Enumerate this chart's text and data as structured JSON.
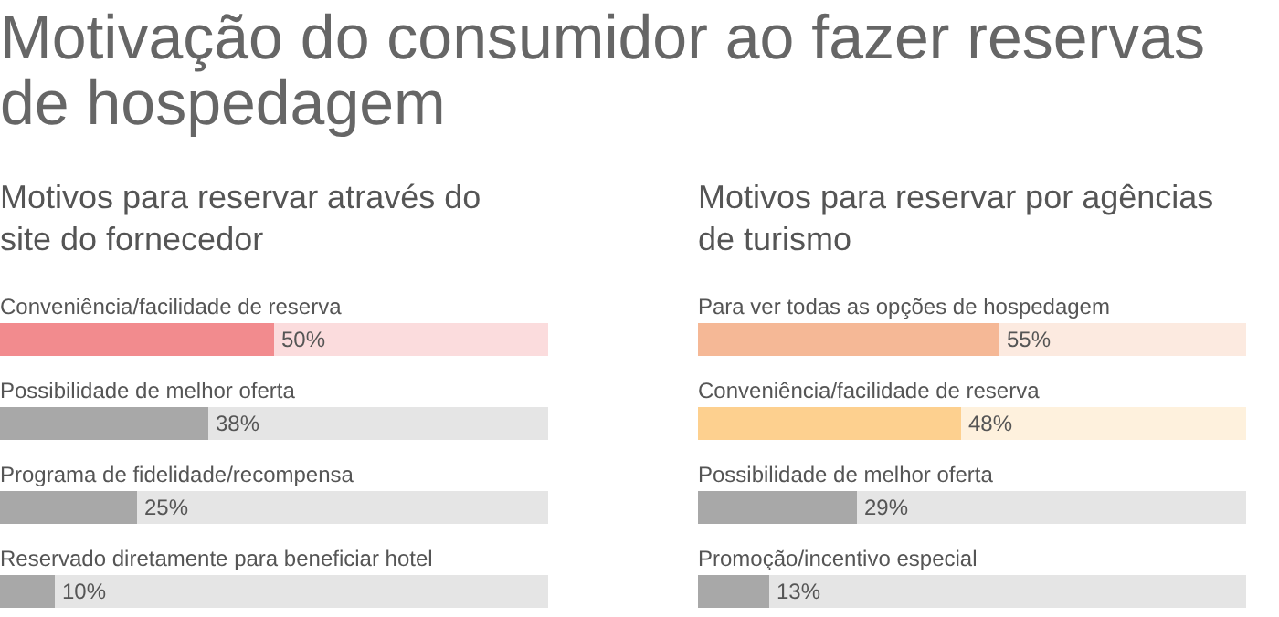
{
  "chart_data": [
    {
      "type": "bar",
      "orientation": "horizontal",
      "title": "Motivação do consumidor ao fazer reservas de hospedagem",
      "subtitle": "Motivos para reservar através do site do fornecedor",
      "categories": [
        "Conveniência/facilidade de reserva",
        "Possibilidade de melhor oferta",
        "Programa de fidelidade/recompensa",
        "Reservado diretamente para beneficiar hotel"
      ],
      "values": [
        50,
        38,
        25,
        10
      ],
      "value_labels": [
        "50%",
        "38%",
        "25%",
        "10%"
      ],
      "colors": [
        "#f28b8e",
        "#a8a8a8",
        "#a8a8a8",
        "#a8a8a8"
      ],
      "xlim": [
        0,
        100
      ]
    },
    {
      "type": "bar",
      "orientation": "horizontal",
      "subtitle": "Motivos para reservar por agências de turismo",
      "categories": [
        "Para ver todas as opções de hospedagem",
        "Conveniência/facilidade de reserva",
        "Possibilidade de melhor oferta",
        "Promoção/incentivo especial"
      ],
      "values": [
        55,
        48,
        29,
        13
      ],
      "value_labels": [
        "55%",
        "48%",
        "29%",
        "13%"
      ],
      "colors": [
        "#f5b896",
        "#fdd08f",
        "#a8a8a8",
        "#a8a8a8"
      ],
      "xlim": [
        0,
        100
      ]
    }
  ]
}
